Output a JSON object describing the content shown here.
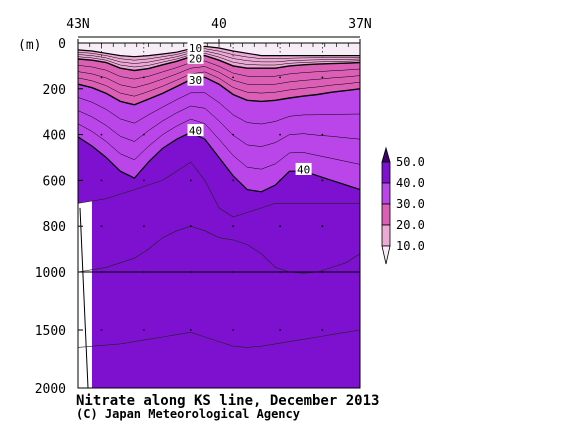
{
  "chart_data": {
    "type": "heatmap",
    "title": "Nitrate along KS line, December 2013",
    "credit": "(C) Japan Meteorological Agency",
    "x_ticks": [
      "43N",
      "40",
      "37N"
    ],
    "y_unit": "(m)",
    "y_ticks": [
      "0",
      "200",
      "400",
      "600",
      "800",
      "1000",
      "1500",
      "2000"
    ],
    "y_tick_values": [
      0,
      200,
      400,
      600,
      800,
      1000,
      1500,
      2000
    ],
    "y_range": [
      0,
      2000
    ],
    "y_scale_note": "depth axis stretched above 1000 m",
    "contour_levels": [
      10,
      20,
      30,
      40
    ],
    "contour_labels": [
      {
        "text": "10",
        "lat": 40.5,
        "depth": 20
      },
      {
        "text": "20",
        "lat": 40.5,
        "depth": 65
      },
      {
        "text": "30",
        "lat": 40.5,
        "depth": 160
      },
      {
        "text": "40",
        "lat": 40.5,
        "depth": 380
      },
      {
        "text": "40",
        "lat": 38.2,
        "depth": 550
      }
    ],
    "colorbar": {
      "labels": [
        "50.0",
        "40.0",
        "30.0",
        "20.0",
        "10.0"
      ],
      "colors": [
        "#3d006b",
        "#7e10cf",
        "#ba46ea",
        "#dc5fb6",
        "#eda9d6",
        "#f6edf6"
      ]
    },
    "fill_colors": {
      "lt10": "#f6edf6",
      "r10_20": "#eda9d6",
      "r20_30": "#dc5fb6",
      "r30_40": "#ba46ea",
      "r40_50": "#7e10cf"
    }
  }
}
